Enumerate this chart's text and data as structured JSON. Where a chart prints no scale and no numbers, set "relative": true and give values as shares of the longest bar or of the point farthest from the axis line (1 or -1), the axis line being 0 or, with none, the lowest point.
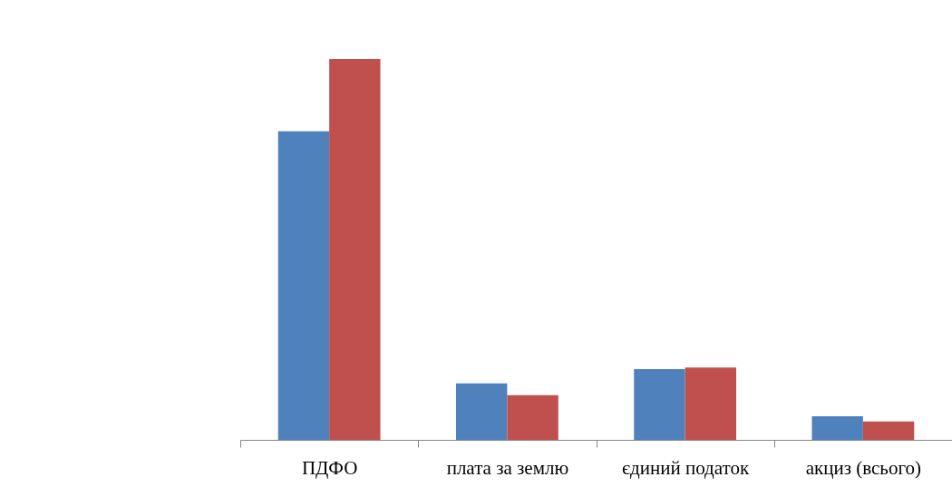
{
  "chart_data": {
    "type": "bar",
    "relative": true,
    "categories": [
      "ПДФО",
      "плата за землю",
      "єдиний податок",
      "акциз (всього)"
    ],
    "series": [
      {
        "color": "#4f81bd",
        "values": [
          0.81,
          0.148,
          0.186,
          0.062
        ]
      },
      {
        "color": "#c0504d",
        "values": [
          1,
          0.117,
          0.19,
          0.048
        ]
      }
    ]
  }
}
